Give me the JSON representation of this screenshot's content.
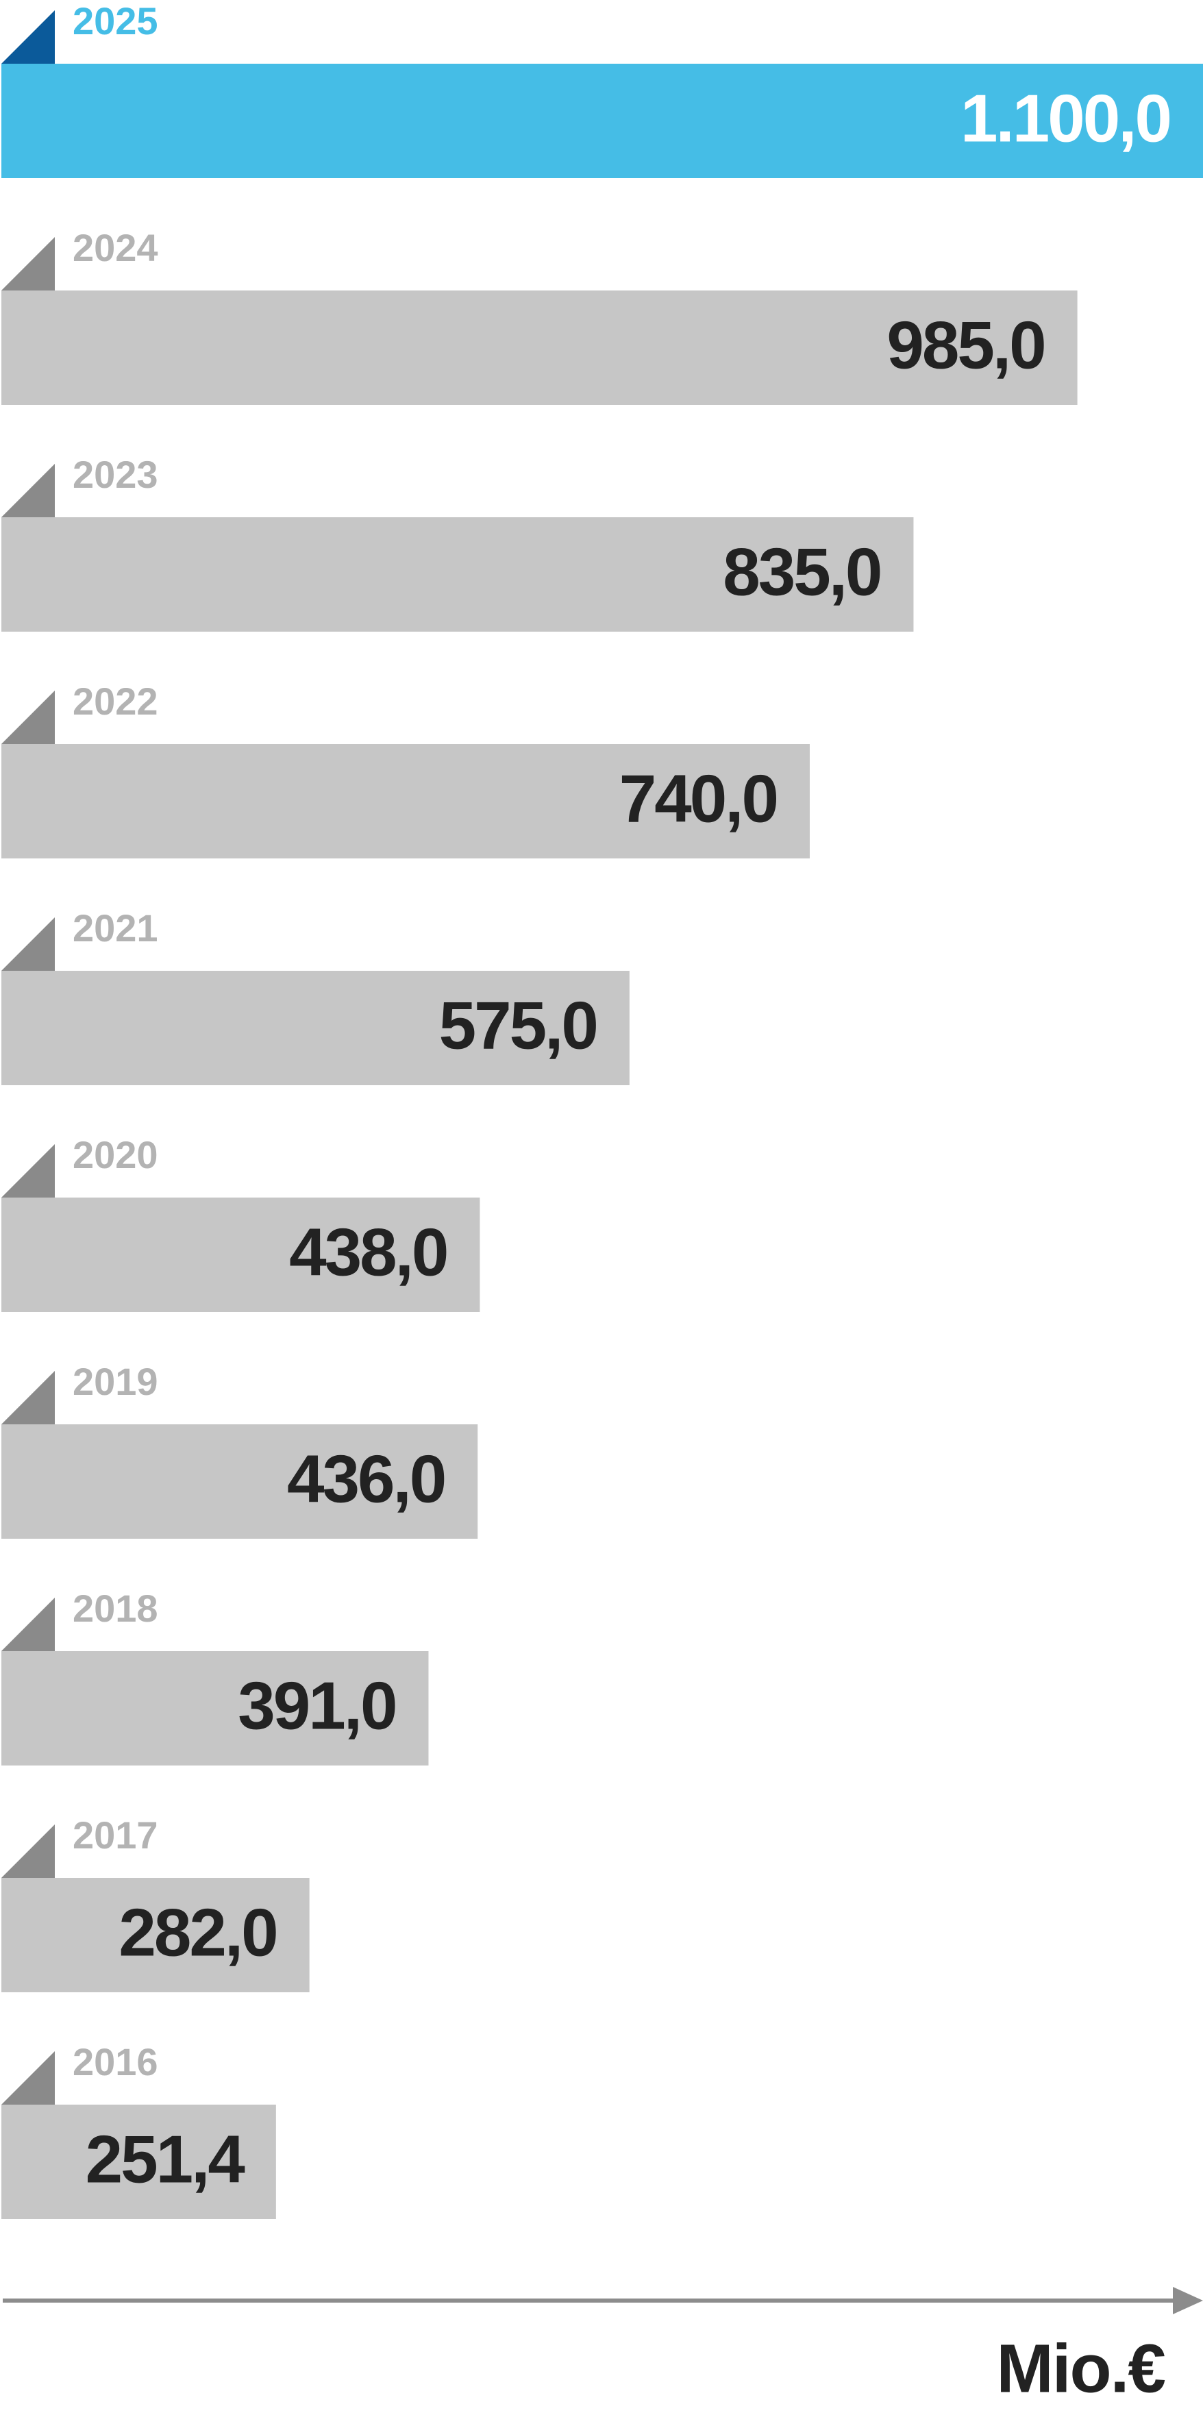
{
  "chart_data": {
    "type": "bar",
    "orientation": "horizontal",
    "categories": [
      "2025",
      "2024",
      "2023",
      "2022",
      "2021",
      "2020",
      "2019",
      "2018",
      "2017",
      "2016"
    ],
    "values": [
      1100,
      985,
      835,
      740,
      575,
      438,
      436,
      391,
      282,
      251.4
    ],
    "value_labels": [
      "1.100,0",
      "985,0",
      "835,0",
      "740,0",
      "575,0",
      "438,0",
      "436,0",
      "391,0",
      "282,0",
      "251,4"
    ],
    "colors": [
      "#45bde6",
      "#c6c6c6",
      "#c6c6c6",
      "#c6c6c6",
      "#c6c6c6",
      "#c6c6c6",
      "#c6c6c6",
      "#c6c6c6",
      "#c6c6c6",
      "#c6c6c6"
    ],
    "xlim": [
      0,
      1100
    ],
    "x_label": "Mio.€"
  }
}
